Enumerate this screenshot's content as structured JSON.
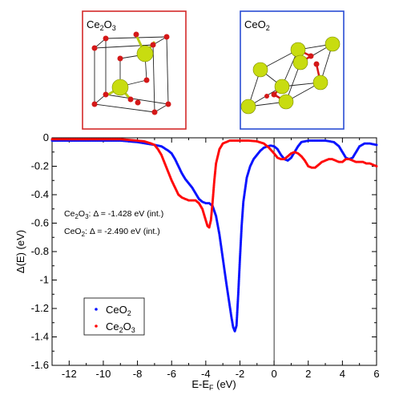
{
  "insets": [
    {
      "label": "Ce",
      "sub1": "2",
      "mid": "O",
      "sub2": "3",
      "frame_color": "#d42a2a"
    },
    {
      "label": "CeO",
      "sub1": "2",
      "mid": "",
      "sub2": "",
      "frame_color": "#2a4cd4"
    }
  ],
  "annotations": [
    {
      "formula": "Ce",
      "sub1": "2",
      "mid": "O",
      "sub2": "3",
      "text": ":  Δ = -1.428 eV (int.)"
    },
    {
      "formula": "CeO",
      "sub1": "2",
      "mid": "",
      "sub2": "",
      "text": ":  Δ = -2.490 eV (int.)"
    }
  ],
  "colors": {
    "ceo2": "#0a14ff",
    "ce2o3": "#ff0a0a",
    "atom_ce": "#c8dc10",
    "atom_o": "#d41818"
  },
  "chart_data": {
    "type": "scatter",
    "xlabel": "E-E",
    "xlabel_sub": "F",
    "xlabel_unit": " (eV)",
    "ylabel": "Δ(E) (eV)",
    "xlim": [
      -13,
      6
    ],
    "ylim": [
      -1.6,
      0
    ],
    "xticks": [
      -12,
      -10,
      -8,
      -6,
      -4,
      -2,
      0,
      2,
      4,
      6
    ],
    "yticks": [
      0,
      -0.2,
      -0.4,
      -0.6,
      -0.8,
      -1,
      -1.2,
      -1.4,
      -1.6
    ],
    "ytick_labels": [
      "0",
      "-0.2",
      "-0.4",
      "-0.6",
      "-0.8",
      "-1",
      "-1.2",
      "-1.4",
      "-1.6"
    ],
    "vline_x": 0,
    "legend": "bottom-left",
    "series": [
      {
        "name": "CeO",
        "name_sub": "2",
        "name_rest": "",
        "color_key": "ceo2",
        "x": [
          -13,
          -12,
          -11,
          -10,
          -9,
          -8,
          -7.5,
          -7,
          -6.6,
          -6.2,
          -6.0,
          -5.8,
          -5.6,
          -5.4,
          -5.2,
          -5.0,
          -4.8,
          -4.6,
          -4.4,
          -4.2,
          -4.0,
          -3.8,
          -3.6,
          -3.4,
          -3.2,
          -3.0,
          -2.8,
          -2.6,
          -2.5,
          -2.4,
          -2.3,
          -2.2,
          -2.1,
          -2.0,
          -1.9,
          -1.8,
          -1.6,
          -1.4,
          -1.2,
          -1.0,
          -0.8,
          -0.6,
          -0.4,
          -0.2,
          0,
          0.2,
          0.4,
          0.6,
          0.8,
          1.0,
          1.2,
          1.4,
          1.6,
          2.0,
          2.5,
          3.0,
          3.5,
          3.8,
          4.0,
          4.2,
          4.4,
          4.6,
          4.8,
          5.0,
          5.3,
          5.6,
          6.0
        ],
        "y": [
          -0.02,
          -0.02,
          -0.02,
          -0.02,
          -0.02,
          -0.03,
          -0.04,
          -0.05,
          -0.06,
          -0.09,
          -0.11,
          -0.15,
          -0.2,
          -0.25,
          -0.29,
          -0.32,
          -0.35,
          -0.39,
          -0.43,
          -0.45,
          -0.46,
          -0.46,
          -0.48,
          -0.55,
          -0.68,
          -0.85,
          -1.02,
          -1.18,
          -1.26,
          -1.33,
          -1.36,
          -1.32,
          -1.1,
          -0.85,
          -0.62,
          -0.45,
          -0.28,
          -0.2,
          -0.15,
          -0.12,
          -0.09,
          -0.07,
          -0.06,
          -0.055,
          -0.06,
          -0.08,
          -0.12,
          -0.15,
          -0.16,
          -0.14,
          -0.1,
          -0.06,
          -0.03,
          -0.02,
          -0.02,
          -0.02,
          -0.03,
          -0.06,
          -0.1,
          -0.14,
          -0.15,
          -0.14,
          -0.1,
          -0.06,
          -0.04,
          -0.04,
          -0.05
        ]
      },
      {
        "name": "Ce",
        "name_sub": "2",
        "name_rest": "O",
        "name_sub2": "3",
        "color_key": "ce2o3",
        "x": [
          -13,
          -12,
          -11,
          -10,
          -9,
          -8,
          -7.6,
          -7.2,
          -7.0,
          -6.8,
          -6.6,
          -6.4,
          -6.2,
          -6.0,
          -5.8,
          -5.6,
          -5.4,
          -5.2,
          -5.0,
          -4.8,
          -4.6,
          -4.4,
          -4.2,
          -4.0,
          -3.9,
          -3.8,
          -3.7,
          -3.6,
          -3.5,
          -3.4,
          -3.2,
          -3.0,
          -2.8,
          -2.6,
          -2.4,
          -2.2,
          -2.0,
          -1.5,
          -1.0,
          -0.6,
          -0.3,
          0,
          0.2,
          0.4,
          0.6,
          0.8,
          1.0,
          1.2,
          1.4,
          1.6,
          1.8,
          2.0,
          2.2,
          2.4,
          2.6,
          2.8,
          3.0,
          3.2,
          3.4,
          3.6,
          3.8,
          4.0,
          4.2,
          4.4,
          4.6,
          4.8,
          5.0,
          5.2,
          5.4,
          5.6,
          5.8,
          6.0
        ],
        "y": [
          -0.01,
          -0.01,
          -0.01,
          -0.01,
          -0.01,
          -0.02,
          -0.025,
          -0.04,
          -0.05,
          -0.08,
          -0.12,
          -0.18,
          -0.24,
          -0.3,
          -0.35,
          -0.4,
          -0.42,
          -0.43,
          -0.44,
          -0.44,
          -0.44,
          -0.46,
          -0.5,
          -0.58,
          -0.62,
          -0.63,
          -0.58,
          -0.45,
          -0.3,
          -0.18,
          -0.08,
          -0.04,
          -0.03,
          -0.02,
          -0.02,
          -0.02,
          -0.02,
          -0.02,
          -0.025,
          -0.04,
          -0.07,
          -0.11,
          -0.14,
          -0.15,
          -0.15,
          -0.13,
          -0.11,
          -0.1,
          -0.11,
          -0.13,
          -0.16,
          -0.2,
          -0.21,
          -0.21,
          -0.19,
          -0.17,
          -0.16,
          -0.15,
          -0.15,
          -0.16,
          -0.17,
          -0.17,
          -0.15,
          -0.15,
          -0.16,
          -0.17,
          -0.17,
          -0.17,
          -0.18,
          -0.18,
          -0.19,
          -0.2
        ]
      }
    ]
  }
}
